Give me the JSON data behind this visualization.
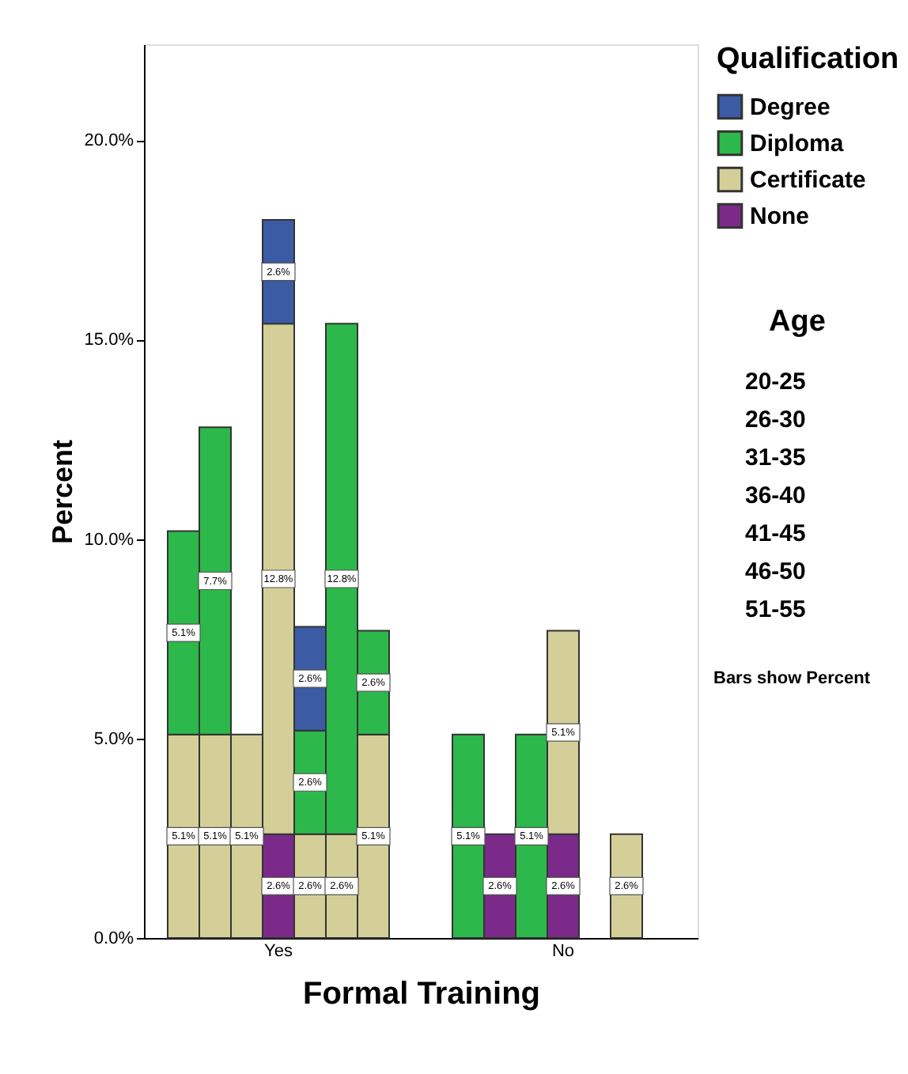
{
  "chart_data": {
    "type": "bar",
    "stacked": true,
    "xlabel": "Formal Training",
    "ylabel": "Percent",
    "legend_title": "Qualification",
    "legend": "right",
    "categories": [
      null,
      null,
      null,
      "Yes",
      null,
      null,
      null,
      null,
      null,
      null,
      null,
      null,
      "No",
      null,
      null,
      null
    ],
    "series": [
      {
        "name": "None",
        "color": "#7b2a8a",
        "values": [
          null,
          null,
          null,
          2.6,
          null,
          null,
          null,
          null,
          null,
          null,
          2.6,
          null,
          2.6,
          null,
          null,
          null
        ],
        "value_labels": [
          null,
          null,
          null,
          "2.6%",
          null,
          null,
          null,
          null,
          null,
          null,
          "2.6%",
          null,
          "2.6%",
          null,
          null,
          null
        ]
      },
      {
        "name": "Certificate",
        "color": "#d4cf98",
        "values": [
          5.1,
          5.1,
          5.1,
          12.8,
          2.6,
          2.6,
          5.1,
          null,
          null,
          null,
          null,
          null,
          5.1,
          null,
          2.6,
          null
        ],
        "value_labels": [
          "5.1%",
          "5.1%",
          "5.1%",
          "12.8%",
          "2.6%",
          "2.6%",
          "5.1%",
          null,
          null,
          null,
          null,
          null,
          "5.1%",
          null,
          "2.6%",
          null
        ]
      },
      {
        "name": "Diploma",
        "color": "#2db84b",
        "values": [
          5.1,
          7.7,
          null,
          null,
          2.6,
          12.8,
          2.6,
          null,
          null,
          5.1,
          null,
          5.1,
          null,
          null,
          null,
          null
        ],
        "value_labels": [
          "5.1%",
          "7.7%",
          null,
          null,
          "2.6%",
          "12.8%",
          "2.6%",
          null,
          null,
          "5.1%",
          null,
          "5.1%",
          null,
          null,
          null,
          null
        ]
      },
      {
        "name": "Degree",
        "color": "#3b5ba5",
        "values": [
          null,
          null,
          null,
          2.6,
          2.6,
          null,
          null,
          null,
          null,
          null,
          null,
          null,
          null,
          null,
          null,
          null
        ],
        "value_labels": [
          null,
          null,
          null,
          "2.6%",
          "2.6%",
          null,
          null,
          null,
          null,
          null,
          null,
          null,
          null,
          null,
          null,
          null
        ]
      }
    ],
    "ylim": [
      0,
      22.4
    ],
    "yticks": [
      {
        "value": 0,
        "label": "0.0%"
      },
      {
        "value": 5,
        "label": "5.0%"
      },
      {
        "value": 10,
        "label": "10.0%"
      },
      {
        "value": 15,
        "label": "15.0%"
      },
      {
        "value": 20,
        "label": "20.0%"
      }
    ],
    "grid": false,
    "annotations": [
      "Age",
      "20-25",
      "26-30",
      "31-35",
      "36-40",
      "41-45",
      "46-50",
      "51-55",
      "Bars show Percent"
    ]
  }
}
